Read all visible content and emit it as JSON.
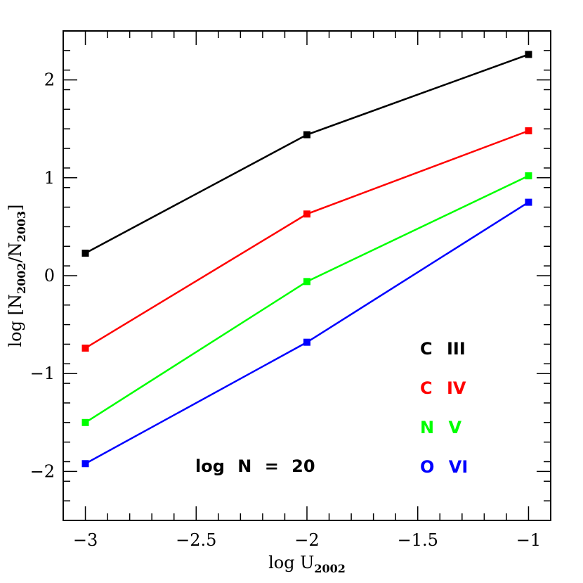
{
  "chart_data": {
    "type": "line",
    "xlabel": {
      "main": "log U",
      "sub": "2002"
    },
    "ylabel": {
      "prefix": "log [N",
      "sub1": "2002",
      "mid": "/N",
      "sub2": "2003",
      "suffix": "]"
    },
    "xlim": [
      -3.1,
      -0.9
    ],
    "ylim": [
      -2.5,
      2.5
    ],
    "x_ticks": [
      {
        "value": -3,
        "label": "−3"
      },
      {
        "value": -2.5,
        "label": "−2.5"
      },
      {
        "value": -2,
        "label": "−2"
      },
      {
        "value": -1.5,
        "label": "−1.5"
      },
      {
        "value": -1,
        "label": "−1"
      }
    ],
    "y_ticks": [
      {
        "value": -2,
        "label": "−2"
      },
      {
        "value": -1,
        "label": "−1"
      },
      {
        "value": 0,
        "label": "0"
      },
      {
        "value": 1,
        "label": "1"
      },
      {
        "value": 2,
        "label": "2"
      }
    ],
    "x_minor_step": 0.1,
    "y_minor_step": 0.2,
    "grid": false,
    "legend_position": "right",
    "x": [
      -3,
      -2,
      -1
    ],
    "series": [
      {
        "name": "C III",
        "color": "#000000",
        "values": [
          0.23,
          1.44,
          2.26
        ]
      },
      {
        "name": "C IV",
        "color": "#ff0000",
        "values": [
          -0.74,
          0.63,
          1.48
        ]
      },
      {
        "name": "N V",
        "color": "#00ff00",
        "values": [
          -1.5,
          -0.06,
          1.02
        ]
      },
      {
        "name": "O VI",
        "color": "#0000ff",
        "values": [
          -1.92,
          -0.68,
          0.75
        ]
      }
    ],
    "annotation": "log N = 20"
  }
}
